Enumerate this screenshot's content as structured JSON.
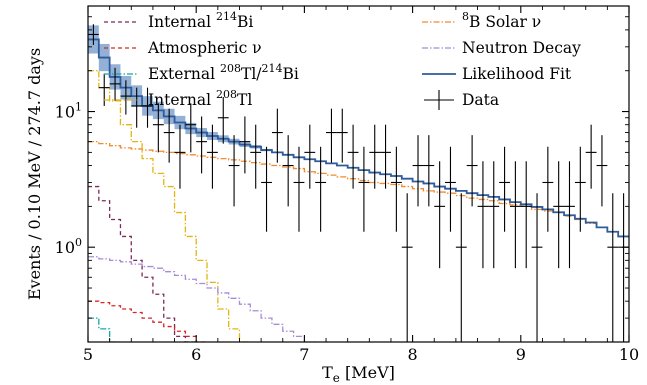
{
  "chart_data": {
    "type": "line",
    "xlabel_main": "T",
    "xlabel_sub": "e",
    "xlabel_unit": " [MeV]",
    "ylabel": "Events / 0.10 MeV / 274.7 days",
    "xlim": [
      5,
      10
    ],
    "ylim": [
      0.2,
      60
    ],
    "yscale": "log",
    "grid": false,
    "legend_placement": "top",
    "x_ticks": [
      {
        "value": 5,
        "label": "5"
      },
      {
        "value": 6,
        "label": "6"
      },
      {
        "value": 7,
        "label": "7"
      },
      {
        "value": 8,
        "label": "8"
      },
      {
        "value": 9,
        "label": "9"
      },
      {
        "value": 10,
        "label": "10"
      }
    ],
    "y_ticks": [
      {
        "value": 1,
        "base": "10",
        "exp": "0"
      },
      {
        "value": 10,
        "base": "10",
        "exp": "1"
      }
    ],
    "legend": [
      {
        "key": "bi214",
        "parts": [
          {
            "t": "Internal "
          },
          {
            "t": "214",
            "sup": true
          },
          {
            "t": "Bi"
          }
        ]
      },
      {
        "key": "atm",
        "parts": [
          {
            "t": "Atmospheric ν"
          }
        ]
      },
      {
        "key": "ext",
        "parts": [
          {
            "t": "External "
          },
          {
            "t": "208",
            "sup": true
          },
          {
            "t": "Tl/"
          },
          {
            "t": "214",
            "sup": true
          },
          {
            "t": "Bi"
          }
        ]
      },
      {
        "key": "tl208",
        "parts": [
          {
            "t": "Internal "
          },
          {
            "t": "208",
            "sup": true
          },
          {
            "t": "Tl"
          }
        ]
      },
      {
        "key": "b8",
        "parts": [
          {
            "t": "8",
            "sup": true
          },
          {
            "t": "B Solar ν"
          }
        ]
      },
      {
        "key": "neutron",
        "parts": [
          {
            "t": "Neutron Decay"
          }
        ]
      },
      {
        "key": "fit",
        "parts": [
          {
            "t": "Likelihood Fit"
          }
        ]
      },
      {
        "key": "data",
        "parts": [
          {
            "t": "Data"
          }
        ]
      }
    ],
    "styles": {
      "bi214": {
        "color": "#7b2a57",
        "dash": "4,3"
      },
      "atm": {
        "color": "#d62728",
        "dash": "4,3"
      },
      "ext": {
        "color": "#17a5a5",
        "dash": "6,2,1.5,2"
      },
      "tl208": {
        "color": "#e3b512",
        "dash": "6,2,1.5,2"
      },
      "b8": {
        "color": "#f28a2e",
        "dash": "6,2,1.5,2"
      },
      "neutron": {
        "color": "#a78bd8",
        "dash": "6,2,1.5,2"
      },
      "fit": {
        "color": "#2f5b9a",
        "band": "#6f95c9"
      },
      "data": {
        "color": "#000000"
      }
    },
    "bin_edges": [
      5.0,
      5.1,
      5.2,
      5.3,
      5.4,
      5.5,
      5.6,
      5.7,
      5.8,
      5.9,
      6.0,
      6.1,
      6.2,
      6.3,
      6.4,
      6.5,
      6.6,
      6.7,
      6.8,
      6.9,
      7.0,
      7.1,
      7.2,
      7.3,
      7.4,
      7.5,
      7.6,
      7.7,
      7.8,
      7.9,
      8.0,
      8.1,
      8.2,
      8.3,
      8.4,
      8.5,
      8.6,
      8.7,
      8.8,
      8.9,
      9.0,
      9.1,
      9.2,
      9.3,
      9.4,
      9.5,
      9.6,
      9.7,
      9.8,
      9.9,
      10.0
    ],
    "series": [
      {
        "key": "b8",
        "values": [
          6.0,
          5.8,
          5.6,
          5.4,
          5.3,
          5.2,
          5.1,
          5.0,
          4.9,
          4.8,
          4.7,
          4.6,
          4.5,
          4.4,
          4.3,
          4.2,
          4.1,
          4.0,
          3.9,
          3.8,
          3.6,
          3.5,
          3.4,
          3.3,
          3.2,
          3.1,
          3.0,
          2.95,
          2.9,
          2.8,
          2.7,
          2.6,
          2.55,
          2.5,
          2.4,
          2.3,
          2.25,
          2.2,
          2.1,
          2.05,
          2.0,
          1.9,
          1.85,
          1.8,
          1.7,
          1.6,
          1.5,
          1.4,
          1.3,
          1.2
        ]
      },
      {
        "key": "tl208",
        "values": [
          20,
          15,
          12,
          8,
          6,
          4.5,
          3.5,
          2.8,
          1.8,
          1.2,
          0.8,
          0.55,
          0.35,
          0.25,
          0.2
        ]
      },
      {
        "key": "bi214",
        "values": [
          2.8,
          2.2,
          1.6,
          1.2,
          0.8,
          0.6,
          0.45,
          0.3,
          0.22,
          0.2
        ]
      },
      {
        "key": "neutron",
        "values": [
          0.85,
          0.82,
          0.8,
          0.78,
          0.75,
          0.72,
          0.7,
          0.66,
          0.62,
          0.58,
          0.54,
          0.5,
          0.46,
          0.42,
          0.38,
          0.34,
          0.3,
          0.27,
          0.24,
          0.22,
          0.2
        ]
      },
      {
        "key": "atm",
        "values": [
          0.4,
          0.39,
          0.37,
          0.35,
          0.33,
          0.3,
          0.28,
          0.26,
          0.24,
          0.22,
          0.2
        ]
      },
      {
        "key": "ext",
        "values": [
          0.3,
          0.25,
          0.2
        ]
      }
    ],
    "fit": {
      "values": [
        34,
        25,
        18,
        15,
        13,
        11,
        10.2,
        9.2,
        8.3,
        7.5,
        7.0,
        6.6,
        6.3,
        6.0,
        5.7,
        5.5,
        5.2,
        5.0,
        4.8,
        4.6,
        4.45,
        4.3,
        4.15,
        4.0,
        3.85,
        3.7,
        3.55,
        3.45,
        3.35,
        3.2,
        3.05,
        2.95,
        2.8,
        2.7,
        2.6,
        2.5,
        2.42,
        2.35,
        2.25,
        2.15,
        2.07,
        1.98,
        1.9,
        1.81,
        1.72,
        1.62,
        1.52,
        1.4,
        1.3,
        1.2
      ],
      "band_rel": [
        0.27,
        0.26,
        0.24,
        0.22,
        0.2,
        0.18,
        0.16,
        0.14,
        0.12,
        0.1,
        0.08,
        0.07,
        0.06,
        0.05,
        0.04,
        0.03,
        0.02
      ]
    },
    "data_points": [
      {
        "x": 5.05,
        "y": 37,
        "lo": 31,
        "hi": 44
      },
      {
        "x": 5.15,
        "y": 15,
        "lo": 11,
        "hi": 19
      },
      {
        "x": 5.25,
        "y": 16,
        "lo": 12,
        "hi": 21
      },
      {
        "x": 5.35,
        "y": 13,
        "lo": 9.5,
        "hi": 17
      },
      {
        "x": 5.45,
        "y": 11,
        "lo": 7.6,
        "hi": 15
      },
      {
        "x": 5.55,
        "y": 11,
        "lo": 7.6,
        "hi": 15
      },
      {
        "x": 5.65,
        "y": 8,
        "lo": 5,
        "hi": 11.5
      },
      {
        "x": 5.75,
        "y": 7,
        "lo": 4.2,
        "hi": 10.5
      },
      {
        "x": 5.85,
        "y": 5,
        "lo": 2.7,
        "hi": 8
      },
      {
        "x": 5.95,
        "y": 8,
        "lo": 5,
        "hi": 11.5
      },
      {
        "x": 6.05,
        "y": 6,
        "lo": 3.5,
        "hi": 9.2
      },
      {
        "x": 6.15,
        "y": 5,
        "lo": 2.7,
        "hi": 8
      },
      {
        "x": 6.25,
        "y": 9,
        "lo": 5.8,
        "hi": 12.8
      },
      {
        "x": 6.35,
        "y": 4,
        "lo": 2,
        "hi": 6.7
      },
      {
        "x": 6.45,
        "y": 6,
        "lo": 3.5,
        "hi": 9.2
      },
      {
        "x": 6.55,
        "y": 5,
        "lo": 2.7,
        "hi": 8
      },
      {
        "x": 6.65,
        "y": 3,
        "lo": 1.3,
        "hi": 5.5
      },
      {
        "x": 6.75,
        "y": 7,
        "lo": 4.2,
        "hi": 10.5
      },
      {
        "x": 6.85,
        "y": 4,
        "lo": 2,
        "hi": 6.7
      },
      {
        "x": 6.95,
        "y": 3,
        "lo": 1.3,
        "hi": 5.5
      },
      {
        "x": 7.05,
        "y": 5,
        "lo": 2.7,
        "hi": 8
      },
      {
        "x": 7.15,
        "y": 3,
        "lo": 1.3,
        "hi": 5.5
      },
      {
        "x": 7.25,
        "y": 7,
        "lo": 4.2,
        "hi": 10.5
      },
      {
        "x": 7.35,
        "y": 7,
        "lo": 4.2,
        "hi": 10.5
      },
      {
        "x": 7.45,
        "y": 5,
        "lo": 2.7,
        "hi": 8
      },
      {
        "x": 7.55,
        "y": 3,
        "lo": 1.3,
        "hi": 5.5
      },
      {
        "x": 7.65,
        "y": 5,
        "lo": 2.7,
        "hi": 8
      },
      {
        "x": 7.75,
        "y": 5,
        "lo": 2.7,
        "hi": 8
      },
      {
        "x": 7.85,
        "y": 3,
        "lo": 1.3,
        "hi": 5.5
      },
      {
        "x": 7.95,
        "y": 1,
        "lo": 0.2,
        "hi": 2.5
      },
      {
        "x": 8.05,
        "y": 4,
        "lo": 2,
        "hi": 6.7
      },
      {
        "x": 8.15,
        "y": 4,
        "lo": 2,
        "hi": 6.7
      },
      {
        "x": 8.25,
        "y": 2,
        "lo": 0.7,
        "hi": 4.3
      },
      {
        "x": 8.35,
        "y": 3,
        "lo": 1.3,
        "hi": 5.5
      },
      {
        "x": 8.45,
        "y": 1,
        "lo": 0.2,
        "hi": 2.5
      },
      {
        "x": 8.55,
        "y": 4,
        "lo": 2,
        "hi": 6.7
      },
      {
        "x": 8.65,
        "y": 2,
        "lo": 0.7,
        "hi": 4.3
      },
      {
        "x": 8.75,
        "y": 2,
        "lo": 0.7,
        "hi": 4.3
      },
      {
        "x": 8.85,
        "y": 3,
        "lo": 1.3,
        "hi": 5.5
      },
      {
        "x": 8.95,
        "y": 2,
        "lo": 0.7,
        "hi": 4.3
      },
      {
        "x": 9.05,
        "y": 2,
        "lo": 0.7,
        "hi": 4.3
      },
      {
        "x": 9.15,
        "y": 1,
        "lo": 0.2,
        "hi": 2.5
      },
      {
        "x": 9.25,
        "y": 3,
        "lo": 1.3,
        "hi": 5.5
      },
      {
        "x": 9.35,
        "y": 2,
        "lo": 0.7,
        "hi": 4.3
      },
      {
        "x": 9.45,
        "y": 2,
        "lo": 0.7,
        "hi": 4.3
      },
      {
        "x": 9.55,
        "y": 3,
        "lo": 1.3,
        "hi": 5.5
      },
      {
        "x": 9.65,
        "y": 5,
        "lo": 2.7,
        "hi": 8
      },
      {
        "x": 9.75,
        "y": 4,
        "lo": 2,
        "hi": 6.7
      },
      {
        "x": 9.85,
        "y": 1,
        "lo": 0.2,
        "hi": 2.5
      },
      {
        "x": 9.95,
        "y": 1,
        "lo": 0.2,
        "hi": 2.5
      }
    ]
  }
}
